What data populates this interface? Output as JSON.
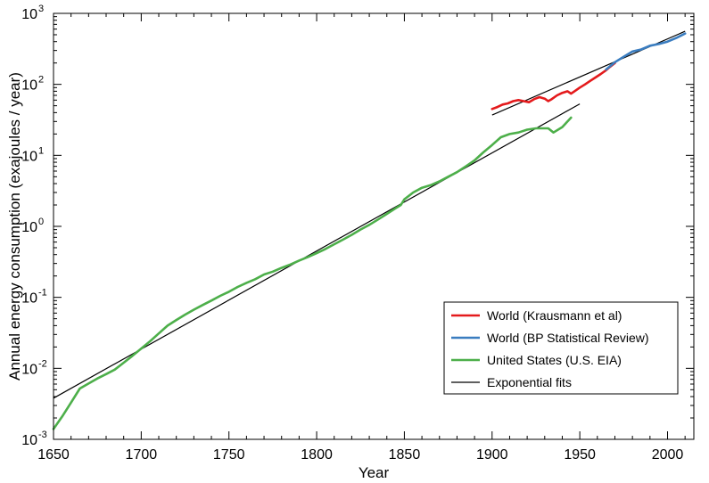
{
  "chart_data": {
    "type": "line",
    "title": "",
    "xlabel": "Year",
    "ylabel": "Annual energy consumption (exajoules / year)",
    "xlim": [
      1650,
      2015
    ],
    "ylim": [
      0.001,
      1000
    ],
    "yscale": "log",
    "grid": false,
    "legend_position": "bottom-right",
    "x_ticks": [
      "1650",
      "1700",
      "1750",
      "1800",
      "1850",
      "1900",
      "1950",
      "2000"
    ],
    "y_ticks": [
      {
        "base": "10",
        "exp": "-3",
        "value": 0.001
      },
      {
        "base": "10",
        "exp": "-2",
        "value": 0.01
      },
      {
        "base": "10",
        "exp": "-1",
        "value": 0.1
      },
      {
        "base": "10",
        "exp": "0",
        "value": 1
      },
      {
        "base": "10",
        "exp": "1",
        "value": 10
      },
      {
        "base": "10",
        "exp": "2",
        "value": 100
      },
      {
        "base": "10",
        "exp": "3",
        "value": 1000
      }
    ],
    "series": [
      {
        "name": "World (Krausmann et al)",
        "color": "#e41a1c",
        "x": [
          1900,
          1903,
          1906,
          1909,
          1912,
          1915,
          1918,
          1921,
          1924,
          1927,
          1930,
          1932,
          1934,
          1937,
          1940,
          1943,
          1945,
          1947,
          1950,
          1953,
          1956,
          1959,
          1962,
          1965,
          1967,
          1970
        ],
        "y": [
          45,
          48,
          52,
          54,
          58,
          60,
          58,
          56,
          62,
          66,
          63,
          58,
          62,
          70,
          76,
          80,
          74,
          80,
          90,
          100,
          112,
          125,
          140,
          158,
          175,
          200
        ]
      },
      {
        "name": "World (BP Statistical Review)",
        "color": "#3a7dc0",
        "x": [
          1965,
          1970,
          1975,
          1980,
          1985,
          1990,
          1995,
          2000,
          2005,
          2010
        ],
        "y": [
          162,
          205,
          245,
          290,
          310,
          350,
          370,
          400,
          450,
          520
        ]
      },
      {
        "name": "United States (U.S. EIA)",
        "color": "#4daf4a",
        "x": [
          1650,
          1655,
          1660,
          1665,
          1670,
          1675,
          1680,
          1685,
          1690,
          1695,
          1700,
          1705,
          1710,
          1715,
          1720,
          1725,
          1730,
          1735,
          1740,
          1745,
          1750,
          1755,
          1760,
          1765,
          1770,
          1775,
          1780,
          1785,
          1790,
          1795,
          1800,
          1805,
          1810,
          1815,
          1820,
          1825,
          1830,
          1835,
          1840,
          1845,
          1848,
          1850,
          1855,
          1860,
          1865,
          1870,
          1875,
          1880,
          1885,
          1890,
          1895,
          1900,
          1905,
          1910,
          1915,
          1920,
          1925,
          1930,
          1932,
          1935,
          1940,
          1945
        ],
        "y": [
          0.0014,
          0.0021,
          0.0033,
          0.0052,
          0.0061,
          0.0072,
          0.0083,
          0.0096,
          0.012,
          0.015,
          0.019,
          0.024,
          0.031,
          0.04,
          0.048,
          0.057,
          0.067,
          0.078,
          0.09,
          0.105,
          0.12,
          0.14,
          0.16,
          0.18,
          0.21,
          0.23,
          0.26,
          0.29,
          0.33,
          0.37,
          0.42,
          0.48,
          0.56,
          0.65,
          0.76,
          0.9,
          1.05,
          1.25,
          1.5,
          1.8,
          2.0,
          2.4,
          3.0,
          3.5,
          3.8,
          4.3,
          5.0,
          5.8,
          7.0,
          8.5,
          11,
          14,
          18,
          20,
          21,
          23,
          24,
          24,
          24,
          21,
          25,
          34
        ]
      },
      {
        "name": "Exponential fits",
        "color": "#000000",
        "segments": [
          {
            "x": [
              1650,
              1950
            ],
            "y": [
              0.0038,
              53
            ]
          },
          {
            "x": [
              1900,
              2010
            ],
            "y": [
              37,
              560
            ]
          }
        ]
      }
    ]
  }
}
